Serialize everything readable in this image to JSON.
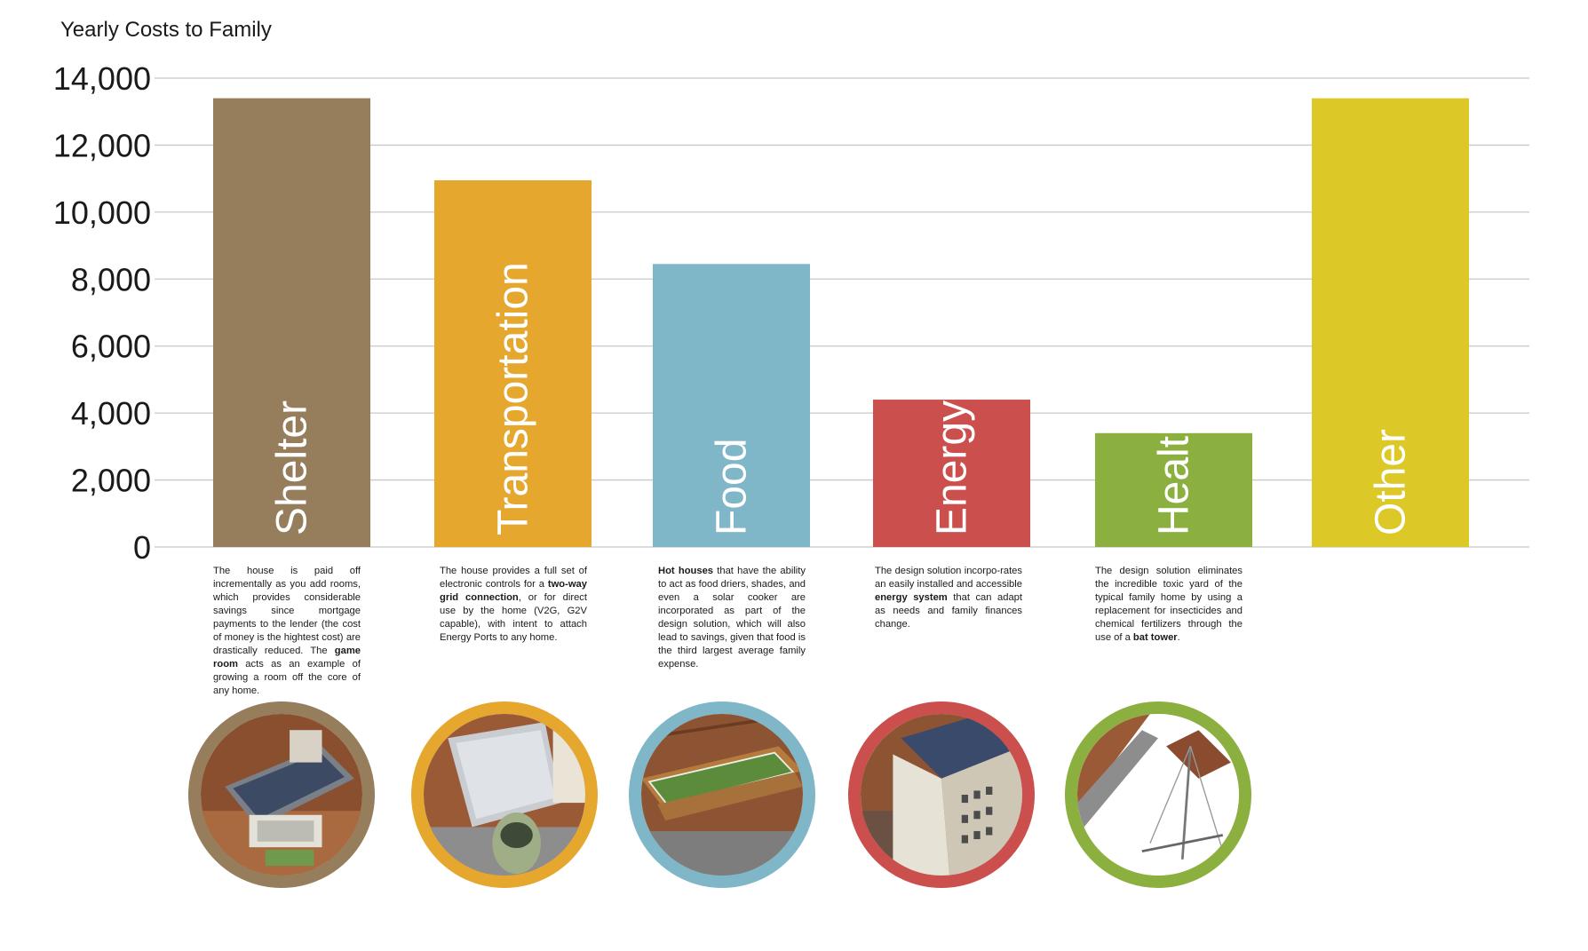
{
  "chart_data": {
    "type": "bar",
    "title": "Yearly Costs to Family",
    "categories": [
      "Shelter",
      "Transportation",
      "Food",
      "Energy",
      "Health",
      "Other"
    ],
    "values": [
      13400,
      10950,
      8450,
      4400,
      3400,
      13400
    ],
    "colors": [
      "#967e5d",
      "#e6a72f",
      "#7fb6c8",
      "#cb4f4c",
      "#8cb03f",
      "#dcc827"
    ],
    "ylim": [
      0,
      14000
    ],
    "yticks": [
      "0",
      "2,000",
      "4,000",
      "6,000",
      "8,000",
      "10,000",
      "12,000",
      "14,000"
    ],
    "grid": true,
    "xlabel": "",
    "ylabel": ""
  },
  "descriptions": [
    {
      "category": "Shelter",
      "parts": [
        {
          "t": "The house is paid off incrementally as you add rooms, which provides considerable savings since mortgage payments to the lender (the cost of money is the hightest cost) are drastically reduced. The ",
          "b": false
        },
        {
          "t": "game room",
          "b": true
        },
        {
          "t": " acts as an example of growing a room off the core of any home.",
          "b": false
        }
      ]
    },
    {
      "category": "Transportation",
      "parts": [
        {
          "t": "The house provides a full set of electronic controls for a ",
          "b": false
        },
        {
          "t": "two-way grid connection",
          "b": true
        },
        {
          "t": ", or for direct use by the home (V2G, G2V capable), with intent to attach Energy Ports to any home.",
          "b": false
        }
      ]
    },
    {
      "category": "Food",
      "parts": [
        {
          "t": "Hot houses",
          "b": true
        },
        {
          "t": " that have the ability to act as food driers, shades, and even a solar cooker are incorporated as part of the design solution, which will also lead to savings, given that food is the third largest average family expense.",
          "b": false
        }
      ]
    },
    {
      "category": "Energy",
      "parts": [
        {
          "t": "The design solution incorpo-rates an easily installed and accessible ",
          "b": false
        },
        {
          "t": "energy system",
          "b": true
        },
        {
          "t": " that can adapt as needs and family finances change.",
          "b": false
        }
      ]
    },
    {
      "category": "Health",
      "parts": [
        {
          "t": "The design solution eliminates the incredible toxic yard of the typical family home by using a replacement for insecticides and chemical fertilizers through the use of a ",
          "b": false
        },
        {
          "t": "bat tower",
          "b": true
        },
        {
          "t": ".",
          "b": false
        }
      ]
    }
  ],
  "thumbnails": [
    {
      "category": "Shelter",
      "icon": "house-rooftop-solar-image",
      "ring": "#967e5d"
    },
    {
      "category": "Transportation",
      "icon": "carport-car-image",
      "ring": "#e6a72f"
    },
    {
      "category": "Food",
      "icon": "greenhouse-planter-image",
      "ring": "#7fb6c8"
    },
    {
      "category": "Energy",
      "icon": "energy-tower-solar-image",
      "ring": "#cb4f4c"
    },
    {
      "category": "Health",
      "icon": "bat-tower-image",
      "ring": "#8cb03f"
    }
  ]
}
